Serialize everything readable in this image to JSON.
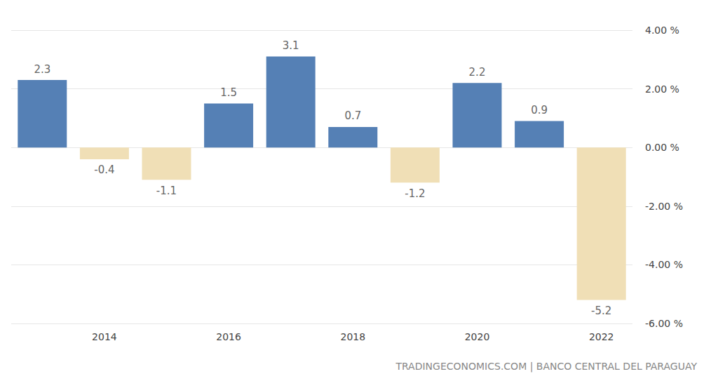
{
  "chart_data": {
    "type": "bar",
    "categories": [
      null,
      "2014",
      null,
      "2016",
      null,
      "2018",
      null,
      "2020",
      null,
      "2022"
    ],
    "values": [
      2.3,
      -0.4,
      -1.1,
      1.5,
      3.1,
      0.7,
      -1.2,
      2.2,
      0.9,
      -5.2
    ],
    "colors": [
      "#5580b5",
      "#f0dfb6",
      "#f0dfb6",
      "#5580b5",
      "#5580b5",
      "#5580b5",
      "#f0dfb6",
      "#5580b5",
      "#5580b5",
      "#f0dfb6"
    ],
    "ylim": [
      -6,
      4
    ],
    "yticks": [
      {
        "value": -6,
        "label": "-6.00 %"
      },
      {
        "value": -4,
        "label": "-4.00 %"
      },
      {
        "value": -2,
        "label": "-2.00 %"
      },
      {
        "value": 0,
        "label": "0.00 %"
      },
      {
        "value": 2,
        "label": "2.00 %"
      },
      {
        "value": 4,
        "label": "4.00 %"
      }
    ],
    "grid": true,
    "data_labels": true,
    "annotations": [
      "TRADINGECONOMICS.COM | BANCO CENTRAL DEL PARAGUAY"
    ]
  }
}
